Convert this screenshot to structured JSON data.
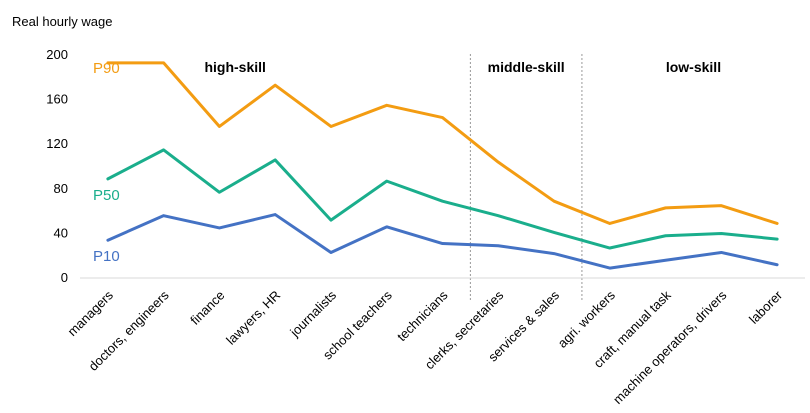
{
  "chart_data": {
    "type": "line",
    "ylabel": "Real hourly wage",
    "ylim": [
      0,
      200
    ],
    "yticks": [
      "0",
      "40",
      "80",
      "120",
      "160",
      "200"
    ],
    "ytick_values": [
      0,
      40,
      80,
      120,
      160,
      200
    ],
    "grid": false,
    "categories": [
      "managers",
      "doctors, engineers",
      "finance",
      "lawyers, HR",
      "journalists",
      "school teachers",
      "technicians",
      "clerks, secretaries",
      "services & sales",
      "agri. workers",
      "craft, manual task",
      "machine operators, drivers",
      "laborer"
    ],
    "series": [
      {
        "name": "P90",
        "color": "#F39C12",
        "values": [
          192,
          192,
          135,
          172,
          135,
          154,
          143,
          103,
          68,
          48,
          62,
          64,
          48
        ]
      },
      {
        "name": "P50",
        "color": "#1AAE8C",
        "values": [
          88,
          114,
          76,
          105,
          51,
          86,
          68,
          55,
          40,
          26,
          37,
          39,
          34
        ]
      },
      {
        "name": "P10",
        "color": "#4472C4",
        "values": [
          33,
          55,
          44,
          56,
          22,
          45,
          30,
          28,
          21,
          8,
          15,
          22,
          11
        ]
      }
    ],
    "sections": [
      {
        "label": "high-skill"
      },
      {
        "label": "middle-skill"
      },
      {
        "label": "low-skill"
      }
    ],
    "divider_after_categories": [
      "technicians",
      "services & sales"
    ]
  }
}
